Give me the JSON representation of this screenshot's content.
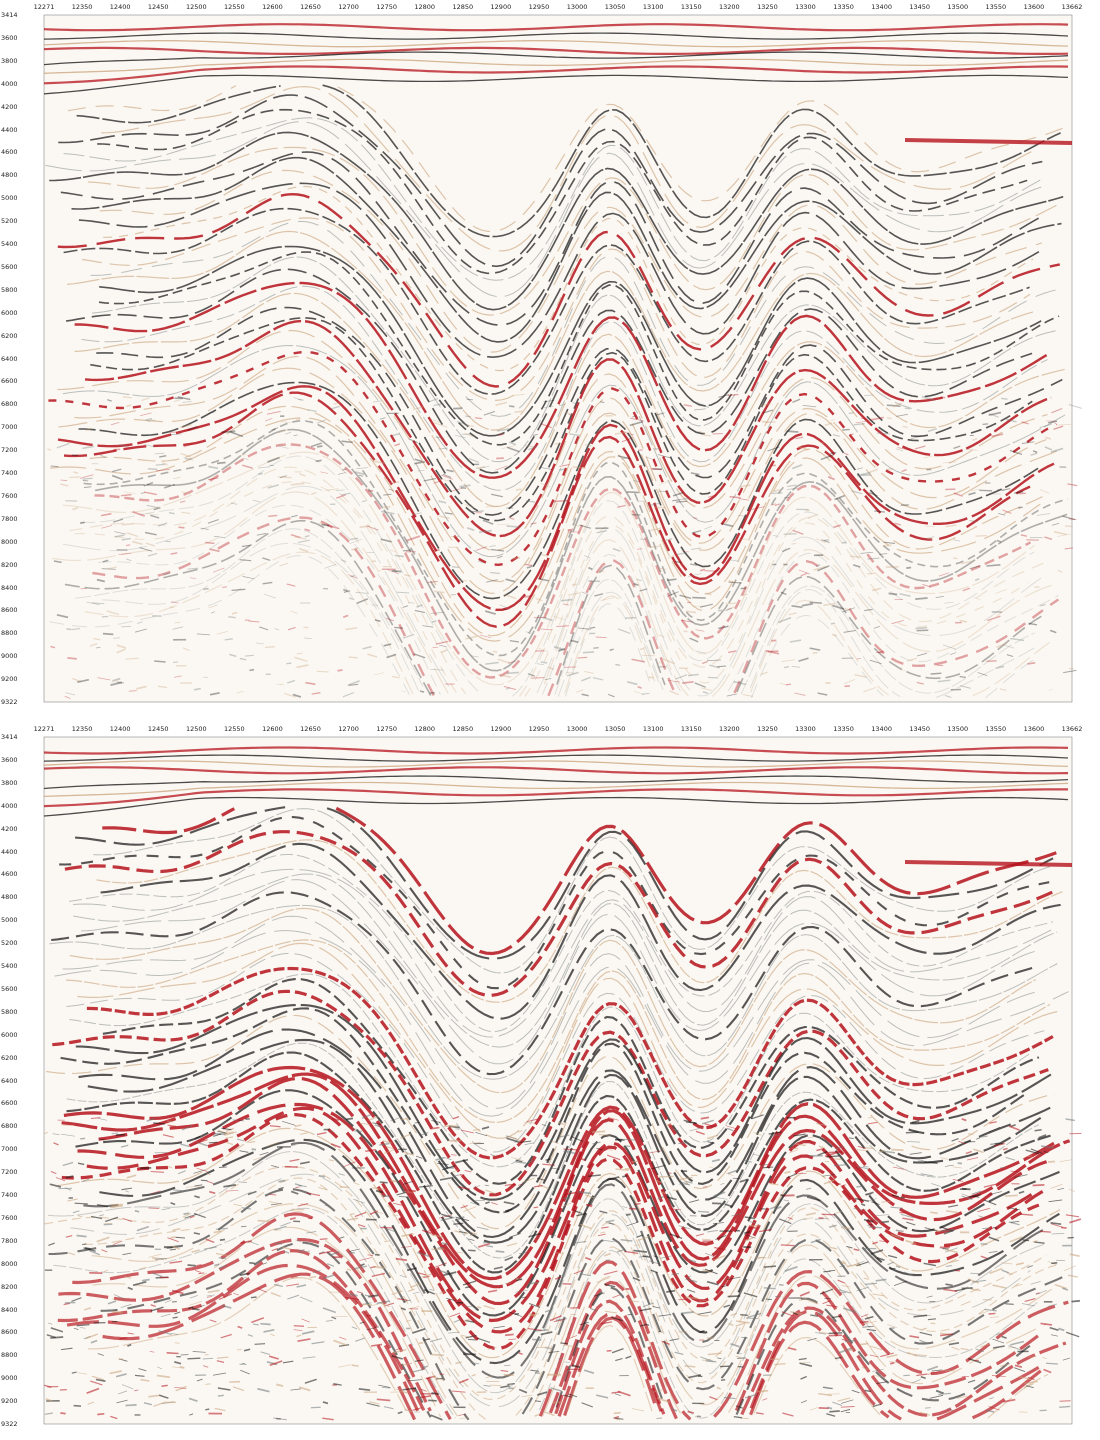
{
  "colors": {
    "peak": "#b5121b",
    "trough": "#101010",
    "tan": "#c9a27a",
    "gray": "#6f7878",
    "background": "#fbf8f3"
  },
  "x_ticks": [
    "12271",
    "12350",
    "12400",
    "12450",
    "12500",
    "12550",
    "12600",
    "12650",
    "12700",
    "12750",
    "12800",
    "12850",
    "12900",
    "12950",
    "13000",
    "13050",
    "13100",
    "13150",
    "13200",
    "13250",
    "13300",
    "13350",
    "13400",
    "13450",
    "13500",
    "13550",
    "13600",
    "13662"
  ],
  "y_ticks": [
    "3414",
    "3600",
    "3800",
    "4000",
    "4200",
    "4400",
    "4600",
    "4800",
    "5000",
    "5200",
    "5400",
    "5600",
    "5800",
    "6000",
    "6200",
    "6400",
    "6600",
    "6800",
    "7000",
    "7200",
    "7400",
    "7600",
    "7800",
    "8000",
    "8200",
    "8400",
    "8600",
    "8800",
    "9000",
    "9200",
    "9322"
  ],
  "panels": [
    {
      "id": "top"
    },
    {
      "id": "bottom"
    }
  ]
}
